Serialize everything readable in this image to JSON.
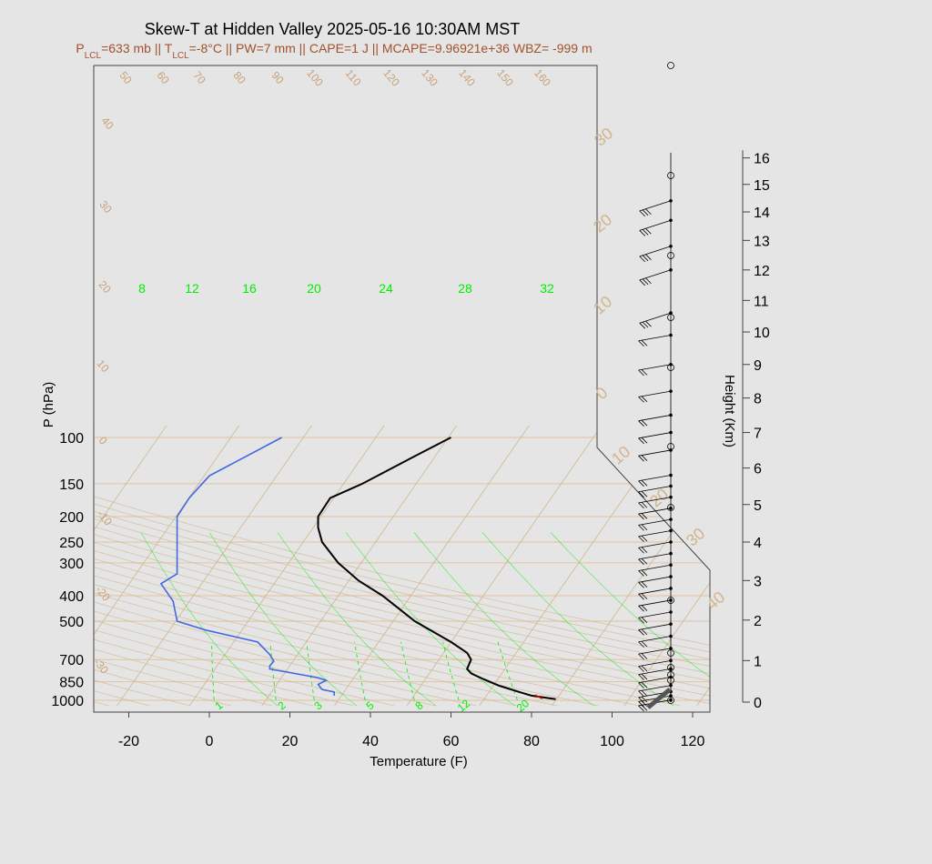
{
  "chart_data": {
    "type": "skew-t",
    "title": "Skew-T at Hidden Valley 2025-05-16 10:30AM MST",
    "subtitle": {
      "plcl": "=633 mb || T",
      "tlcl": "=-8°C || PW=7 mm || CAPE=1 J || MCAPE=9.96921e+36 WBZ= -999 m"
    },
    "xlabel": "Temperature (F)",
    "ylabel": "P (hPa)",
    "y2label": "Height (Km)",
    "x_ticks": [
      -20,
      0,
      20,
      40,
      60,
      80,
      100,
      120
    ],
    "p_ticks": [
      100,
      150,
      200,
      250,
      300,
      400,
      500,
      700,
      850,
      1000
    ],
    "height_ticks": [
      0,
      1,
      2,
      3,
      4,
      5,
      6,
      7,
      8,
      9,
      10,
      11,
      12,
      13,
      14,
      15,
      16
    ],
    "isotherm_labels_c": [
      30,
      20,
      10,
      0,
      10,
      20,
      30,
      40
    ],
    "dry_adiabat_labels": [
      50,
      60,
      70,
      80,
      90,
      100,
      110,
      120,
      130,
      140,
      150,
      160,
      40,
      30,
      20,
      10,
      0,
      -10,
      -20,
      -30
    ],
    "mixing_ratio_labels_top": [
      8,
      12,
      16,
      20,
      24,
      28,
      32
    ],
    "mixing_ratio_labels_bottom": [
      1,
      2,
      3,
      5,
      8,
      12,
      20
    ],
    "temperature": [
      {
        "p": 990,
        "t": 86
      },
      {
        "p": 960,
        "t": 80
      },
      {
        "p": 930,
        "t": 77
      },
      {
        "p": 880,
        "t": 72
      },
      {
        "p": 830,
        "t": 68
      },
      {
        "p": 790,
        "t": 65
      },
      {
        "p": 760,
        "t": 64
      },
      {
        "p": 700,
        "t": 65
      },
      {
        "p": 660,
        "t": 64
      },
      {
        "p": 600,
        "t": 60
      },
      {
        "p": 500,
        "t": 51
      },
      {
        "p": 400,
        "t": 43
      },
      {
        "p": 350,
        "t": 37
      },
      {
        "p": 300,
        "t": 32
      },
      {
        "p": 250,
        "t": 28
      },
      {
        "p": 220,
        "t": 27
      },
      {
        "p": 200,
        "t": 27
      },
      {
        "p": 170,
        "t": 30
      },
      {
        "p": 150,
        "t": 38
      },
      {
        "p": 120,
        "t": 50
      },
      {
        "p": 100,
        "t": 60
      }
    ],
    "dewpoint": [
      {
        "p": 960,
        "t": 31
      },
      {
        "p": 930,
        "t": 31
      },
      {
        "p": 910,
        "t": 28
      },
      {
        "p": 870,
        "t": 27
      },
      {
        "p": 840,
        "t": 29
      },
      {
        "p": 820,
        "t": 27
      },
      {
        "p": 760,
        "t": 15
      },
      {
        "p": 740,
        "t": 15
      },
      {
        "p": 710,
        "t": 16
      },
      {
        "p": 670,
        "t": 15
      },
      {
        "p": 600,
        "t": 12
      },
      {
        "p": 540,
        "t": -1
      },
      {
        "p": 500,
        "t": -8
      },
      {
        "p": 420,
        "t": -9
      },
      {
        "p": 360,
        "t": -12
      },
      {
        "p": 330,
        "t": -8
      },
      {
        "p": 250,
        "t": -8
      },
      {
        "p": 200,
        "t": -8
      },
      {
        "p": 170,
        "t": -5
      },
      {
        "p": 140,
        "t": 0
      },
      {
        "p": 100,
        "t": 18
      }
    ],
    "parcel_lcl_marker": {
      "p": 970,
      "t": 82
    },
    "isobar_color": "#e0c3a0",
    "isotherm_color": "#d2b48c",
    "temperature_color": "#000000",
    "dewpoint_color": "#4169e1",
    "mixing_ratio_color": "#00ee00",
    "wind_levels_km": [
      0.05,
      0.15,
      0.25,
      0.4,
      0.6,
      0.8,
      1.0,
      1.3,
      1.6,
      1.9,
      2.2,
      2.5,
      2.8,
      3.1,
      3.4,
      3.7,
      4.0,
      4.3,
      4.6,
      4.9,
      5.2,
      5.5,
      5.8,
      6.5,
      7.0,
      7.5,
      8.2,
      9.0,
      9.9,
      10.6,
      12.0,
      12.8,
      13.7,
      14.4
    ],
    "grid": true
  }
}
